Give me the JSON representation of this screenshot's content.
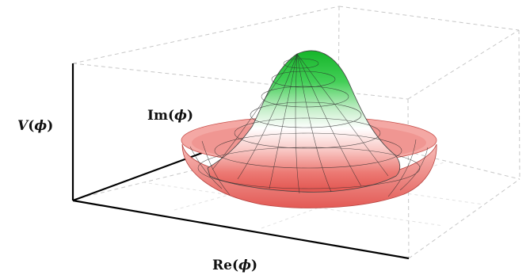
{
  "figure": {
    "labels": {
      "potential_prefix": "V",
      "imag_prefix": "Im",
      "real_prefix": "Re",
      "symbol": "ϕ"
    },
    "colors": {
      "peak": "#1ec431",
      "middle": "#ffffff",
      "rim": "#e85a55",
      "mesh": "#222222",
      "box_edges": "#bdbdbd",
      "axes": "#000000"
    }
  }
}
